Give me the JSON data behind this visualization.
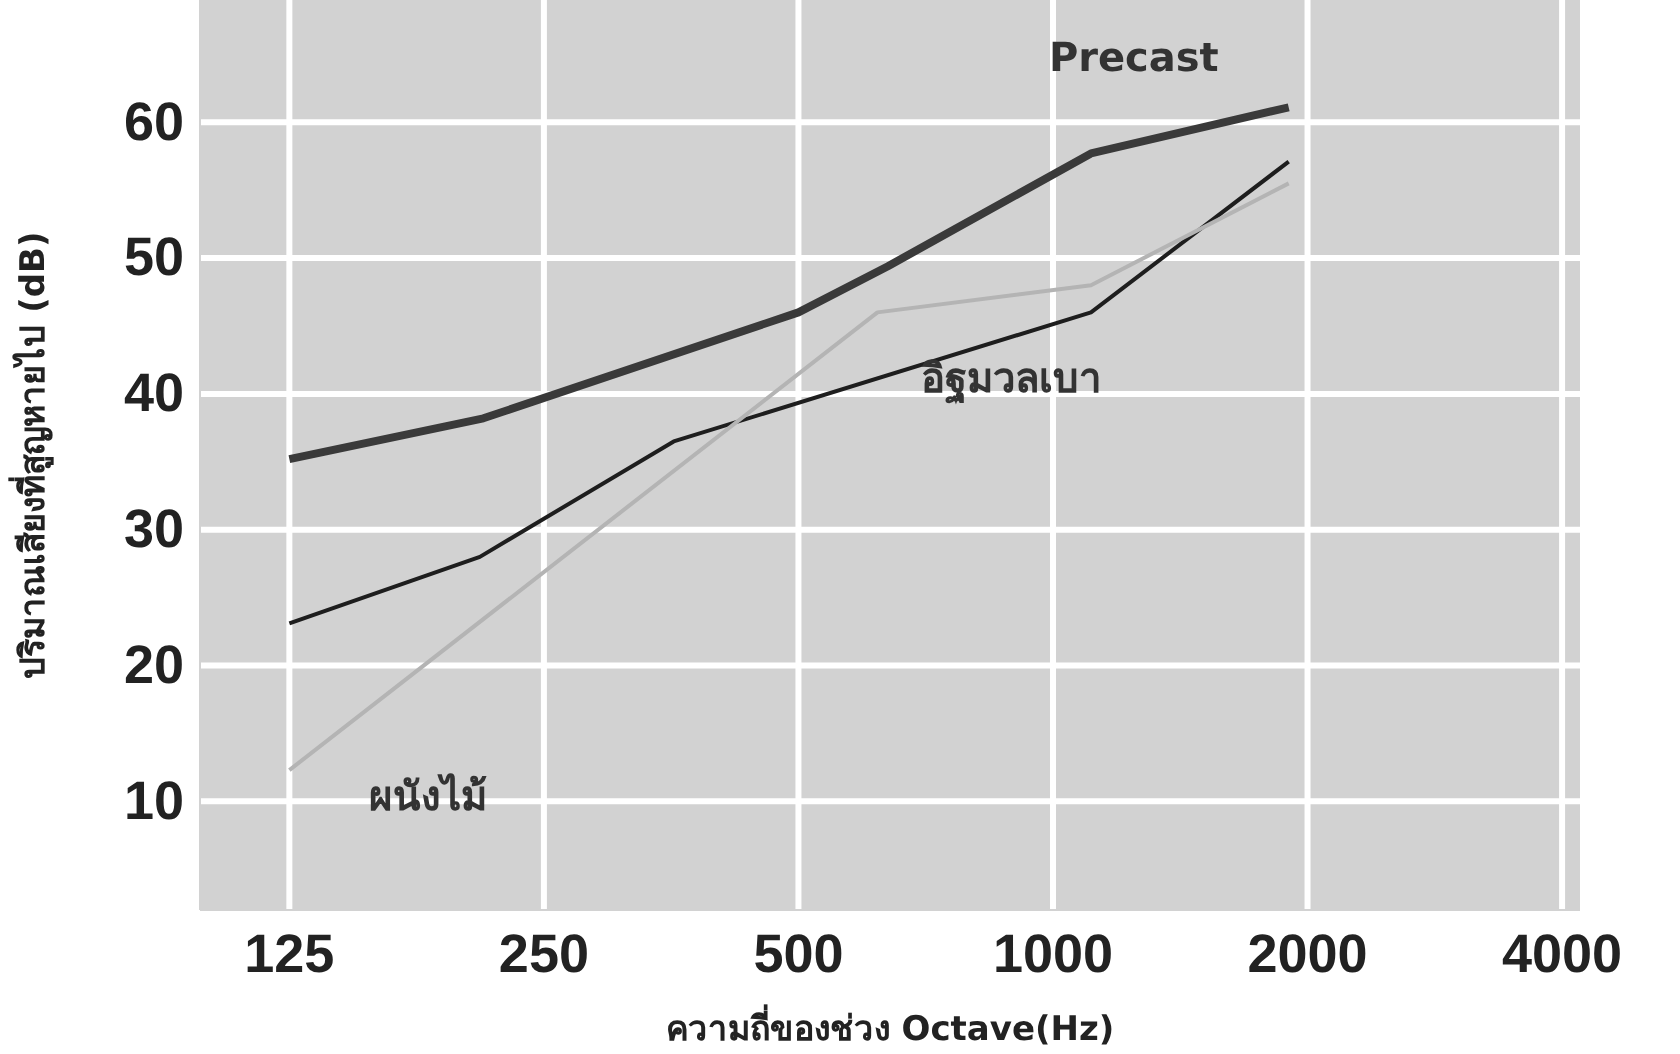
{
  "chart_data": {
    "type": "line",
    "xlabel": "ความถี่ของช่วง Octave(Hz)",
    "ylabel": "ปริมาณเสียงที่สูญหายไป (dB)",
    "log": "x",
    "xlim": [
      98,
      4200
    ],
    "xticks": [
      125,
      250,
      500,
      1000,
      2000,
      4000
    ],
    "ylim": [
      2,
      69
    ],
    "yticks": [
      10,
      20,
      30,
      40,
      50,
      60
    ],
    "grid": true,
    "legend": false,
    "line_style": "solid",
    "marker": "none",
    "series": [
      {
        "name": "Precast",
        "color": "#3a3a3a",
        "x": [
          125,
          212,
          500,
          638,
          1109,
          1900
        ],
        "values": [
          35.2,
          38.2,
          46.0,
          49.4,
          57.7,
          61.1
        ]
      },
      {
        "name": "อิฐมวลเบา",
        "color": "#1e1e1e",
        "x": [
          125,
          210,
          356,
          1109,
          1900
        ],
        "values": [
          23.1,
          28.0,
          36.5,
          46.0,
          57.1
        ]
      },
      {
        "name": "ผนังไม้",
        "color": "#b4b4b4",
        "x": [
          125,
          620,
          1109,
          1900
        ],
        "values": [
          12.3,
          46.0,
          48.0,
          55.5
        ]
      }
    ]
  }
}
